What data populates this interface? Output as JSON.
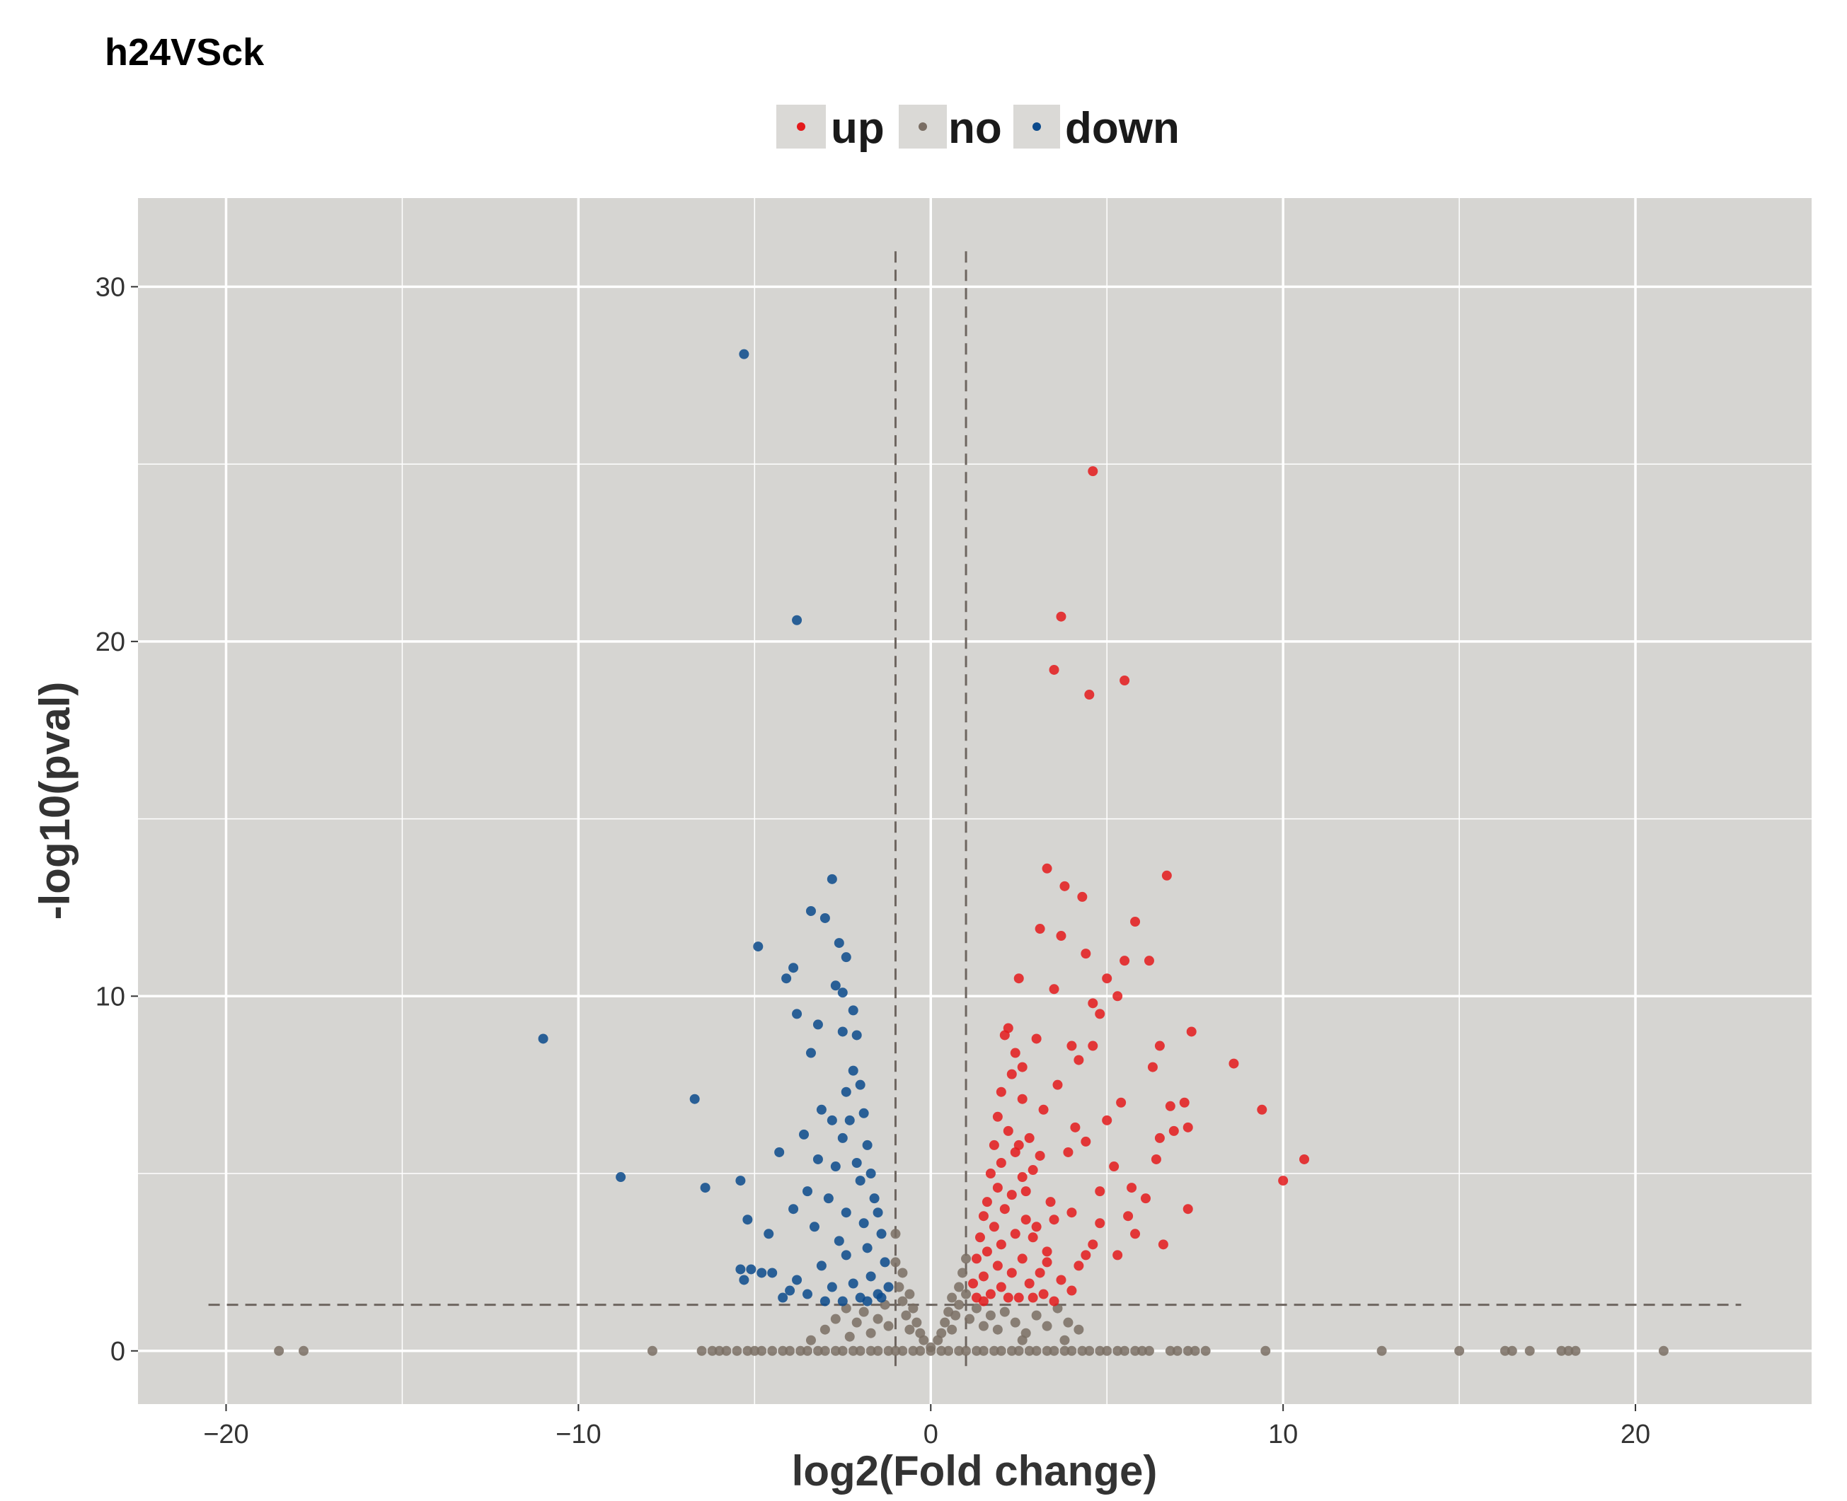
{
  "chart_data": {
    "type": "scatter",
    "title": "h24VSck",
    "xlabel": "log2(Fold change)",
    "ylabel": "-log10(pval)",
    "xlim": [
      -22.5,
      25
    ],
    "ylim": [
      -1.5,
      32.5
    ],
    "x_ticks": [
      -20,
      -10,
      0,
      10,
      20
    ],
    "y_ticks": [
      0,
      10,
      20,
      30
    ],
    "x_tick_labels": [
      "−20",
      "−10",
      "0",
      "10",
      "20"
    ],
    "y_tick_labels": [
      "0",
      "10",
      "20",
      "30"
    ],
    "grid": true,
    "legend_position": "top",
    "thresholds": {
      "log2fc": [
        -1,
        1
      ],
      "neg_log10_pval": 1.3
    },
    "colors": {
      "up": "#e41a1c",
      "no": "#7a6e64",
      "down": "#0b4a8c",
      "panel": "#d6d5d2",
      "grid": "#ffffff",
      "threshold_line": "#6e6660"
    },
    "series": [
      {
        "name": "up",
        "points": [
          [
            4.6,
            24.8
          ],
          [
            3.7,
            20.7
          ],
          [
            3.5,
            19.2
          ],
          [
            4.5,
            18.5
          ],
          [
            5.5,
            18.9
          ],
          [
            3.3,
            13.6
          ],
          [
            6.7,
            13.4
          ],
          [
            3.8,
            13.1
          ],
          [
            4.3,
            12.8
          ],
          [
            5.8,
            12.1
          ],
          [
            3.1,
            11.9
          ],
          [
            3.7,
            11.7
          ],
          [
            4.4,
            11.2
          ],
          [
            5.5,
            11.0
          ],
          [
            6.2,
            11.0
          ],
          [
            2.5,
            10.5
          ],
          [
            5.0,
            10.5
          ],
          [
            3.5,
            10.2
          ],
          [
            5.3,
            10.0
          ],
          [
            4.6,
            9.8
          ],
          [
            4.8,
            9.5
          ],
          [
            2.2,
            9.1
          ],
          [
            7.4,
            9.0
          ],
          [
            3.0,
            8.8
          ],
          [
            4.0,
            8.6
          ],
          [
            4.6,
            8.6
          ],
          [
            6.5,
            8.6
          ],
          [
            2.4,
            8.4
          ],
          [
            8.6,
            8.1
          ],
          [
            4.2,
            8.2
          ],
          [
            6.3,
            8.0
          ],
          [
            2.6,
            8.0
          ],
          [
            3.6,
            7.5
          ],
          [
            5.4,
            7.0
          ],
          [
            7.2,
            7.0
          ],
          [
            6.8,
            6.9
          ],
          [
            9.4,
            6.8
          ],
          [
            3.2,
            6.8
          ],
          [
            5.0,
            6.5
          ],
          [
            4.1,
            6.3
          ],
          [
            7.3,
            6.3
          ],
          [
            6.5,
            6.0
          ],
          [
            6.9,
            6.2
          ],
          [
            4.4,
            5.9
          ],
          [
            10.6,
            5.4
          ],
          [
            3.9,
            5.6
          ],
          [
            6.4,
            5.4
          ],
          [
            5.2,
            5.2
          ],
          [
            2.9,
            5.1
          ],
          [
            10.0,
            4.8
          ],
          [
            5.7,
            4.6
          ],
          [
            4.8,
            4.5
          ],
          [
            6.1,
            4.3
          ],
          [
            7.3,
            4.0
          ],
          [
            4.0,
            3.9
          ],
          [
            5.6,
            3.8
          ],
          [
            3.5,
            3.7
          ],
          [
            4.8,
            3.6
          ],
          [
            5.8,
            3.3
          ],
          [
            6.6,
            3.0
          ],
          [
            2.9,
            3.2
          ],
          [
            4.6,
            3.0
          ],
          [
            3.3,
            2.8
          ],
          [
            4.4,
            2.7
          ],
          [
            5.3,
            2.7
          ],
          [
            4.2,
            2.4
          ],
          [
            3.1,
            2.2
          ],
          [
            3.7,
            2.0
          ],
          [
            2.8,
            1.9
          ],
          [
            4.0,
            1.7
          ],
          [
            3.2,
            1.6
          ],
          [
            2.5,
            1.5
          ],
          [
            3.5,
            1.4
          ],
          [
            2.1,
            8.9
          ],
          [
            2.3,
            7.8
          ],
          [
            2.0,
            7.3
          ],
          [
            2.6,
            7.1
          ],
          [
            1.9,
            6.6
          ],
          [
            2.2,
            6.2
          ],
          [
            2.8,
            6.0
          ],
          [
            1.8,
            5.8
          ],
          [
            2.4,
            5.6
          ],
          [
            2.0,
            5.3
          ],
          [
            1.7,
            5.0
          ],
          [
            2.6,
            4.9
          ],
          [
            1.9,
            4.6
          ],
          [
            2.3,
            4.4
          ],
          [
            1.6,
            4.2
          ],
          [
            2.1,
            4.0
          ],
          [
            1.5,
            3.8
          ],
          [
            2.7,
            3.7
          ],
          [
            1.8,
            3.5
          ],
          [
            2.4,
            3.3
          ],
          [
            1.4,
            3.2
          ],
          [
            2.0,
            3.0
          ],
          [
            1.6,
            2.8
          ],
          [
            2.6,
            2.6
          ],
          [
            1.3,
            2.6
          ],
          [
            1.9,
            2.4
          ],
          [
            2.3,
            2.2
          ],
          [
            1.5,
            2.1
          ],
          [
            1.2,
            1.9
          ],
          [
            2.0,
            1.8
          ],
          [
            1.7,
            1.6
          ],
          [
            1.3,
            1.5
          ],
          [
            2.2,
            1.5
          ],
          [
            1.5,
            1.4
          ],
          [
            2.9,
            1.5
          ],
          [
            3.3,
            2.5
          ],
          [
            3.0,
            3.5
          ],
          [
            3.4,
            4.2
          ],
          [
            2.7,
            4.5
          ],
          [
            3.1,
            5.5
          ],
          [
            2.5,
            5.8
          ]
        ]
      },
      {
        "name": "no",
        "points": [
          [
            -18.5,
            0
          ],
          [
            -17.8,
            0
          ],
          [
            -7.9,
            0
          ],
          [
            -6.5,
            0
          ],
          [
            -6.2,
            0
          ],
          [
            -6.0,
            0
          ],
          [
            -5.8,
            0
          ],
          [
            -5.5,
            0
          ],
          [
            -5.2,
            0
          ],
          [
            -5.0,
            0
          ],
          [
            -4.8,
            0
          ],
          [
            -4.5,
            0
          ],
          [
            -4.2,
            0
          ],
          [
            -4.0,
            0
          ],
          [
            -3.7,
            0
          ],
          [
            -3.5,
            0
          ],
          [
            -3.2,
            0
          ],
          [
            -3.0,
            0
          ],
          [
            -2.7,
            0
          ],
          [
            -2.5,
            0
          ],
          [
            -2.2,
            0
          ],
          [
            -2.0,
            0
          ],
          [
            -1.7,
            0
          ],
          [
            -1.5,
            0
          ],
          [
            -1.2,
            0
          ],
          [
            -1.0,
            0
          ],
          [
            -0.8,
            0
          ],
          [
            -0.5,
            0
          ],
          [
            -0.3,
            0
          ],
          [
            0.0,
            0
          ],
          [
            0.3,
            0
          ],
          [
            0.5,
            0
          ],
          [
            0.8,
            0
          ],
          [
            1.0,
            0
          ],
          [
            1.3,
            0
          ],
          [
            1.5,
            0
          ],
          [
            1.8,
            0
          ],
          [
            2.0,
            0
          ],
          [
            2.3,
            0
          ],
          [
            2.5,
            0
          ],
          [
            2.8,
            0
          ],
          [
            3.0,
            0
          ],
          [
            3.3,
            0
          ],
          [
            3.5,
            0
          ],
          [
            3.8,
            0
          ],
          [
            4.0,
            0
          ],
          [
            4.3,
            0
          ],
          [
            4.5,
            0
          ],
          [
            4.8,
            0
          ],
          [
            5.0,
            0
          ],
          [
            5.3,
            0
          ],
          [
            5.5,
            0
          ],
          [
            5.8,
            0
          ],
          [
            6.0,
            0
          ],
          [
            6.2,
            0
          ],
          [
            6.8,
            0
          ],
          [
            7.0,
            0
          ],
          [
            7.3,
            0
          ],
          [
            7.5,
            0
          ],
          [
            7.8,
            0
          ],
          [
            9.5,
            0
          ],
          [
            12.8,
            0
          ],
          [
            15.0,
            0
          ],
          [
            16.3,
            0
          ],
          [
            16.5,
            0
          ],
          [
            17.0,
            0
          ],
          [
            17.9,
            0
          ],
          [
            18.1,
            0
          ],
          [
            18.3,
            0
          ],
          [
            20.8,
            0
          ],
          [
            -3.0,
            0.6
          ],
          [
            -2.7,
            0.9
          ],
          [
            -2.4,
            1.2
          ],
          [
            -2.1,
            0.8
          ],
          [
            -1.9,
            1.1
          ],
          [
            -1.7,
            0.5
          ],
          [
            -1.5,
            0.9
          ],
          [
            -1.3,
            1.3
          ],
          [
            -1.2,
            0.7
          ],
          [
            -1.0,
            2.5
          ],
          [
            -1.0,
            3.3
          ],
          [
            -0.9,
            1.8
          ],
          [
            -0.8,
            2.2
          ],
          [
            -0.8,
            1.4
          ],
          [
            -0.7,
            1.0
          ],
          [
            -0.6,
            1.6
          ],
          [
            -0.6,
            0.6
          ],
          [
            -0.5,
            1.2
          ],
          [
            -0.4,
            0.8
          ],
          [
            -0.3,
            0.5
          ],
          [
            -0.2,
            0.3
          ],
          [
            0.0,
            0.1
          ],
          [
            0.2,
            0.3
          ],
          [
            0.3,
            0.5
          ],
          [
            0.4,
            0.8
          ],
          [
            0.5,
            1.1
          ],
          [
            0.6,
            0.6
          ],
          [
            0.6,
            1.5
          ],
          [
            0.7,
            1.0
          ],
          [
            0.8,
            1.8
          ],
          [
            0.8,
            1.3
          ],
          [
            0.9,
            2.2
          ],
          [
            1.0,
            2.6
          ],
          [
            1.0,
            1.6
          ],
          [
            1.1,
            0.9
          ],
          [
            1.3,
            1.2
          ],
          [
            1.5,
            0.7
          ],
          [
            1.7,
            1.0
          ],
          [
            1.9,
            0.6
          ],
          [
            2.1,
            1.1
          ],
          [
            2.4,
            0.8
          ],
          [
            2.7,
            0.5
          ],
          [
            3.0,
            1.0
          ],
          [
            3.3,
            0.7
          ],
          [
            3.6,
            1.2
          ],
          [
            3.9,
            0.8
          ],
          [
            4.2,
            0.6
          ],
          [
            -2.3,
            0.4
          ],
          [
            -3.4,
            0.3
          ],
          [
            2.6,
            0.3
          ],
          [
            3.8,
            0.3
          ]
        ]
      },
      {
        "name": "down",
        "points": [
          [
            -5.3,
            28.1
          ],
          [
            -3.8,
            20.6
          ],
          [
            -11.0,
            8.8
          ],
          [
            -6.7,
            7.1
          ],
          [
            -8.8,
            4.9
          ],
          [
            -6.4,
            4.6
          ],
          [
            -5.4,
            4.8
          ],
          [
            -5.2,
            3.7
          ],
          [
            -2.8,
            13.3
          ],
          [
            -3.4,
            12.4
          ],
          [
            -3.0,
            12.2
          ],
          [
            -4.9,
            11.4
          ],
          [
            -2.6,
            11.5
          ],
          [
            -2.4,
            11.1
          ],
          [
            -3.9,
            10.8
          ],
          [
            -4.1,
            10.5
          ],
          [
            -2.7,
            10.3
          ],
          [
            -2.5,
            10.1
          ],
          [
            -2.2,
            9.6
          ],
          [
            -3.8,
            9.5
          ],
          [
            -3.2,
            9.2
          ],
          [
            -2.5,
            9.0
          ],
          [
            -2.1,
            8.9
          ],
          [
            -3.4,
            8.4
          ],
          [
            -2.2,
            7.9
          ],
          [
            -2.0,
            7.5
          ],
          [
            -2.4,
            7.3
          ],
          [
            -3.1,
            6.8
          ],
          [
            -2.8,
            6.5
          ],
          [
            -3.6,
            6.1
          ],
          [
            -2.3,
            6.5
          ],
          [
            -1.9,
            6.7
          ],
          [
            -2.5,
            6.0
          ],
          [
            -4.3,
            5.6
          ],
          [
            -3.2,
            5.4
          ],
          [
            -2.7,
            5.2
          ],
          [
            -1.8,
            5.8
          ],
          [
            -2.1,
            5.3
          ],
          [
            -3.5,
            4.5
          ],
          [
            -2.9,
            4.3
          ],
          [
            -2.0,
            4.8
          ],
          [
            -1.7,
            5.0
          ],
          [
            -3.9,
            4.0
          ],
          [
            -2.4,
            3.9
          ],
          [
            -1.6,
            4.3
          ],
          [
            -4.6,
            3.3
          ],
          [
            -3.3,
            3.5
          ],
          [
            -2.6,
            3.1
          ],
          [
            -1.9,
            3.6
          ],
          [
            -1.5,
            3.9
          ],
          [
            -5.1,
            2.3
          ],
          [
            -5.4,
            2.3
          ],
          [
            -4.8,
            2.2
          ],
          [
            -4.5,
            2.2
          ],
          [
            -3.8,
            2.0
          ],
          [
            -3.1,
            2.4
          ],
          [
            -2.4,
            2.7
          ],
          [
            -1.8,
            2.9
          ],
          [
            -1.4,
            3.3
          ],
          [
            -5.3,
            2.0
          ],
          [
            -4.0,
            1.7
          ],
          [
            -3.5,
            1.6
          ],
          [
            -2.8,
            1.8
          ],
          [
            -2.2,
            1.9
          ],
          [
            -1.7,
            2.1
          ],
          [
            -1.3,
            2.5
          ],
          [
            -1.2,
            1.8
          ],
          [
            -1.5,
            1.6
          ],
          [
            -2.0,
            1.5
          ],
          [
            -2.5,
            1.4
          ],
          [
            -3.0,
            1.4
          ],
          [
            -4.2,
            1.5
          ],
          [
            -1.8,
            1.4
          ],
          [
            -1.4,
            1.5
          ]
        ]
      }
    ]
  }
}
